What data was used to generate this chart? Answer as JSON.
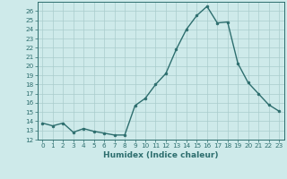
{
  "x": [
    0,
    1,
    2,
    3,
    4,
    5,
    6,
    7,
    8,
    9,
    10,
    11,
    12,
    13,
    14,
    15,
    16,
    17,
    18,
    19,
    20,
    21,
    22,
    23
  ],
  "y": [
    13.8,
    13.5,
    13.8,
    12.8,
    13.2,
    12.9,
    12.7,
    12.5,
    12.5,
    15.7,
    16.5,
    18.0,
    19.2,
    21.8,
    24.0,
    25.5,
    26.5,
    24.7,
    24.8,
    20.3,
    18.2,
    17.0,
    15.8,
    15.1
  ],
  "xlabel": "Humidex (Indice chaleur)",
  "ylim": [
    12,
    27
  ],
  "xlim": [
    -0.5,
    23.5
  ],
  "yticks": [
    12,
    13,
    14,
    15,
    16,
    17,
    18,
    19,
    20,
    21,
    22,
    23,
    24,
    25,
    26
  ],
  "xticks": [
    0,
    1,
    2,
    3,
    4,
    5,
    6,
    7,
    8,
    9,
    10,
    11,
    12,
    13,
    14,
    15,
    16,
    17,
    18,
    19,
    20,
    21,
    22,
    23
  ],
  "line_color": "#2d6e6e",
  "marker_size": 2.0,
  "line_width": 1.0,
  "bg_color": "#ceeaea",
  "grid_color": "#aacccc",
  "label_color": "#2d6e6e",
  "font_size_ticks": 5.2,
  "font_size_xlabel": 6.5
}
